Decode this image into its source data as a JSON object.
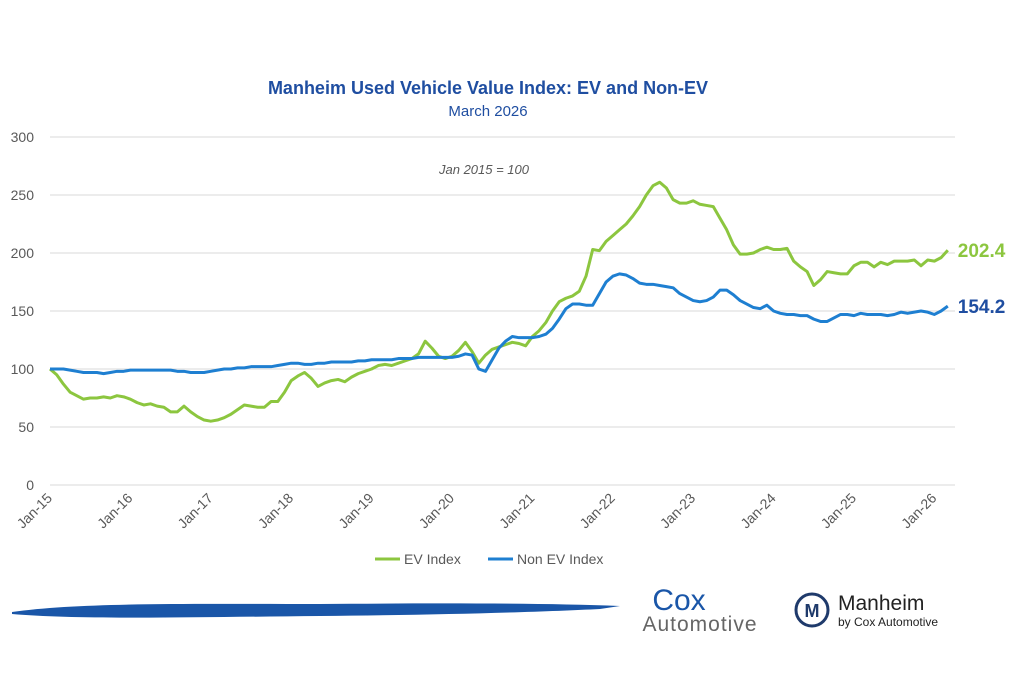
{
  "chart_data": {
    "type": "line",
    "title": "Manheim Used Vehicle Value Index: EV and Non-EV",
    "subtitle": "March 2026",
    "annotation": "Jan 2015 = 100",
    "categories": [
      "Jan-15",
      null,
      null,
      null,
      null,
      null,
      null,
      null,
      null,
      null,
      null,
      null,
      "Jan-16",
      null,
      null,
      null,
      null,
      null,
      null,
      null,
      null,
      null,
      null,
      null,
      "Jan-17",
      null,
      null,
      null,
      null,
      null,
      null,
      null,
      null,
      null,
      null,
      null,
      "Jan-18",
      null,
      null,
      null,
      null,
      null,
      null,
      null,
      null,
      null,
      null,
      null,
      "Jan-19",
      null,
      null,
      null,
      null,
      null,
      null,
      null,
      null,
      null,
      null,
      null,
      "Jan-20",
      null,
      null,
      null,
      null,
      null,
      null,
      null,
      null,
      null,
      null,
      null,
      "Jan-21",
      null,
      null,
      null,
      null,
      null,
      null,
      null,
      null,
      null,
      null,
      null,
      "Jan-22",
      null,
      null,
      null,
      null,
      null,
      null,
      null,
      null,
      null,
      null,
      null,
      "Jan-23",
      null,
      null,
      null,
      null,
      null,
      null,
      null,
      null,
      null,
      null,
      null,
      "Jan-24",
      null,
      null,
      null,
      null,
      null,
      null,
      null,
      null,
      null,
      null,
      null,
      "Jan-25",
      null,
      null,
      null,
      null,
      null,
      null,
      null,
      null,
      null,
      null,
      null,
      "Jan-26",
      null,
      null
    ],
    "series": [
      {
        "name": "EV Index",
        "color": "#8cc63f",
        "values": [
          100,
          95,
          87,
          80,
          77,
          74,
          75,
          75,
          76,
          75,
          77,
          76,
          74,
          71,
          69,
          70,
          68,
          67,
          63,
          63,
          68,
          63,
          59,
          56,
          55,
          56,
          58,
          61,
          65,
          69,
          68,
          67,
          67,
          72,
          72,
          80,
          90,
          94,
          97,
          92,
          85,
          88,
          90,
          91,
          89,
          93,
          96,
          98,
          100,
          103,
          104,
          103,
          105,
          107,
          109,
          113,
          124,
          118,
          111,
          109,
          111,
          116,
          123,
          115,
          105,
          112,
          117,
          119,
          121,
          123,
          122,
          120,
          128,
          133,
          140,
          150,
          158,
          161,
          163,
          167,
          180,
          203,
          202,
          210,
          215,
          220,
          225,
          232,
          240,
          250,
          258,
          261,
          256,
          246,
          243,
          243,
          245,
          242,
          241,
          240,
          230,
          220,
          207,
          199,
          199,
          200,
          203,
          205,
          203,
          203,
          204,
          193,
          188,
          184,
          172,
          177,
          184,
          183,
          182,
          182,
          189,
          192,
          192,
          188,
          192,
          190,
          193,
          193,
          193,
          194,
          189,
          194,
          193,
          196,
          202.4
        ]
      },
      {
        "name": "Non EV Index",
        "color": "#1e7fd1",
        "values": [
          100,
          100,
          100,
          99,
          98,
          97,
          97,
          97,
          96,
          97,
          98,
          98,
          99,
          99,
          99,
          99,
          99,
          99,
          99,
          98,
          98,
          97,
          97,
          97,
          98,
          99,
          100,
          100,
          101,
          101,
          102,
          102,
          102,
          102,
          103,
          104,
          105,
          105,
          104,
          104,
          105,
          105,
          106,
          106,
          106,
          106,
          107,
          107,
          108,
          108,
          108,
          108,
          109,
          109,
          109,
          110,
          110,
          110,
          110,
          110,
          110,
          111,
          113,
          112,
          100,
          98,
          108,
          118,
          124,
          128,
          127,
          127,
          127,
          128,
          130,
          135,
          143,
          152,
          156,
          156,
          155,
          155,
          165,
          175,
          180,
          182,
          181,
          178,
          174,
          173,
          173,
          172,
          171,
          170,
          165,
          162,
          159,
          158,
          159,
          162,
          168,
          168,
          164,
          159,
          156,
          153,
          152,
          155,
          150,
          148,
          147,
          147,
          146,
          146,
          143,
          141,
          141,
          144,
          147,
          147,
          146,
          148,
          147,
          147,
          147,
          146,
          147,
          149,
          148,
          149,
          150,
          149,
          147,
          150,
          154.2
        ]
      }
    ],
    "ylim": [
      0,
      300
    ],
    "yticks": [
      0,
      50,
      100,
      150,
      200,
      250,
      300
    ],
    "grid": true,
    "legend": "bottom"
  },
  "footer": {
    "brand1_line1": "Cox",
    "brand1_line2": "Automotive",
    "brand2_name": "Manheim",
    "brand2_sub": "by Cox Automotive"
  }
}
